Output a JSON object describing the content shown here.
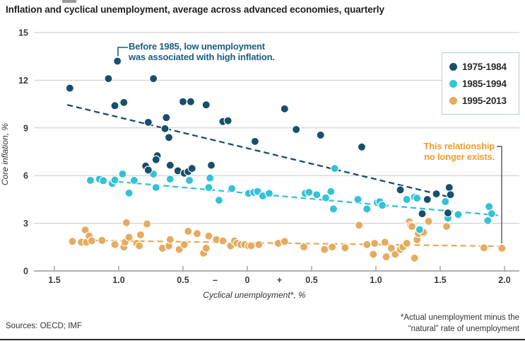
{
  "page": {
    "title": "Inflation and cyclical unemployment, average across advanced economies, quarterly",
    "sources": "Sources: OECD; IMF",
    "footnote_line1": "*Actual unemployment minus the",
    "footnote_line2": "“natural” rate of unemployment"
  },
  "colors": {
    "series_1975": "#174f6c",
    "series_1985": "#35c1d6",
    "series_1995": "#e5ab60",
    "annotation_blue": "#1d5d80",
    "annotation_orange": "#f39c2d",
    "grid": "#c9c9c9",
    "axis": "#979797",
    "tick_text": "#3b3b3b",
    "legend_border": "#b5cedd",
    "connector_gray": "#555555"
  },
  "legend": {
    "items": [
      {
        "label": "1975-1984",
        "color": "#174f6c"
      },
      {
        "label": "1985-1994",
        "color": "#35c1d6"
      },
      {
        "label": "1995-2013",
        "color": "#e5ab60"
      }
    ]
  },
  "annotations": {
    "before1985": {
      "line1": "Before 1985, low unemployment",
      "line2": "was associated with high inflation.",
      "color": "#1d5d80",
      "points_to": [
        -1.01,
        13.2
      ]
    },
    "no_longer": {
      "line1": "This relationship",
      "line2": "no longer exists.",
      "color": "#f39c2d",
      "points_to": [
        1.98,
        1.55
      ]
    }
  },
  "chart_data": {
    "type": "scatter",
    "title": "Inflation and cyclical unemployment, average across advanced economies, quarterly",
    "xlabel": "Cyclical unemployment*, %",
    "ylabel": "Core inflation, %",
    "grid": true,
    "legend_position": "top-right",
    "x_axis": {
      "label": "Cyclical unemployment*, %",
      "range": [
        -1.66,
        2.12
      ],
      "ticks": [
        {
          "v": -1.5,
          "label": "1.5",
          "tick": true
        },
        {
          "v": -1.0,
          "label": "1.0",
          "tick": true
        },
        {
          "v": -0.5,
          "label": "0.5",
          "tick": true
        },
        {
          "v": -0.25,
          "label": "–",
          "tick": false
        },
        {
          "v": 0.0,
          "label": "0",
          "tick": true
        },
        {
          "v": 0.25,
          "label": "+",
          "tick": false
        },
        {
          "v": 0.5,
          "label": "0.5",
          "tick": true
        },
        {
          "v": 1.0,
          "label": "1.0",
          "tick": true
        },
        {
          "v": 1.5,
          "label": "1.5",
          "tick": true
        },
        {
          "v": 2.0,
          "label": "2.0",
          "tick": true
        }
      ]
    },
    "y_axis": {
      "label": "Core inflation, %",
      "range": [
        0,
        15
      ],
      "ticks": [
        0,
        3,
        6,
        9,
        12,
        15
      ]
    },
    "series": [
      {
        "name": "1975-1984",
        "color": "#174f6c",
        "trend": {
          "from": [
            -1.4,
            10.45
          ],
          "to": [
            1.6,
            4.6
          ]
        },
        "points": [
          [
            -1.38,
            11.5
          ],
          [
            -1.08,
            12.1
          ],
          [
            -1.01,
            13.2
          ],
          [
            -0.73,
            12.1
          ],
          [
            -1.03,
            10.4
          ],
          [
            -0.96,
            10.6
          ],
          [
            -0.5,
            10.65
          ],
          [
            -0.44,
            10.65
          ],
          [
            -0.32,
            10.45
          ],
          [
            -0.77,
            9.35
          ],
          [
            -0.63,
            9.65
          ],
          [
            -0.64,
            8.95
          ],
          [
            -0.61,
            8.4
          ],
          [
            -0.19,
            9.4
          ],
          [
            -0.15,
            9.45
          ],
          [
            0.06,
            8.15
          ],
          [
            0.29,
            10.2
          ],
          [
            0.38,
            8.9
          ],
          [
            0.57,
            8.55
          ],
          [
            0.89,
            7.8
          ],
          [
            -0.7,
            7.25
          ],
          [
            -0.71,
            7.0
          ],
          [
            -0.79,
            6.6
          ],
          [
            -0.77,
            6.35
          ],
          [
            -0.6,
            6.65
          ],
          [
            -0.54,
            6.3
          ],
          [
            -0.49,
            6.15
          ],
          [
            -0.46,
            6.25
          ],
          [
            -0.43,
            6.45
          ],
          [
            -0.28,
            6.65
          ],
          [
            1.19,
            5.1
          ],
          [
            1.4,
            4.5
          ],
          [
            1.47,
            4.85
          ],
          [
            1.57,
            5.25
          ],
          [
            1.58,
            4.8
          ],
          [
            1.36,
            3.6
          ],
          [
            1.56,
            3.65
          ]
        ]
      },
      {
        "name": "1985-1994",
        "color": "#35c1d6",
        "trend": {
          "from": [
            -1.15,
            5.72
          ],
          "to": [
            1.95,
            3.5
          ]
        },
        "points": [
          [
            -1.22,
            5.7
          ],
          [
            -1.15,
            5.78
          ],
          [
            -1.12,
            5.68
          ],
          [
            -1.05,
            5.5
          ],
          [
            -1.03,
            5.72
          ],
          [
            -0.97,
            6.1
          ],
          [
            -0.92,
            4.9
          ],
          [
            -0.88,
            5.7
          ],
          [
            -0.73,
            6.1
          ],
          [
            -0.71,
            5.25
          ],
          [
            -0.6,
            5.78
          ],
          [
            -0.45,
            5.7
          ],
          [
            -0.3,
            5.25
          ],
          [
            -0.29,
            5.85
          ],
          [
            -0.22,
            4.45
          ],
          [
            -0.12,
            5.18
          ],
          [
            0.01,
            4.88
          ],
          [
            0.05,
            4.95
          ],
          [
            0.08,
            5.0
          ],
          [
            0.12,
            4.72
          ],
          [
            0.17,
            4.88
          ],
          [
            0.45,
            4.88
          ],
          [
            0.48,
            4.95
          ],
          [
            0.54,
            4.8
          ],
          [
            0.61,
            4.6
          ],
          [
            0.65,
            5.0
          ],
          [
            0.67,
            3.9
          ],
          [
            0.68,
            6.45
          ],
          [
            0.86,
            4.5
          ],
          [
            0.93,
            3.9
          ],
          [
            1.01,
            4.3
          ],
          [
            1.03,
            4.36
          ],
          [
            1.05,
            4.13
          ],
          [
            1.24,
            4.5
          ],
          [
            1.3,
            4.65
          ],
          [
            1.32,
            4.58
          ],
          [
            1.34,
            2.6
          ],
          [
            1.54,
            4.36
          ],
          [
            1.56,
            3.32
          ],
          [
            1.64,
            3.55
          ],
          [
            1.87,
            3.17
          ],
          [
            1.88,
            4.05
          ],
          [
            1.9,
            3.6
          ]
        ]
      },
      {
        "name": "1995-2013",
        "color": "#e5ab60",
        "trend": {
          "from": [
            -1.2,
            1.92
          ],
          "to": [
            1.98,
            1.55
          ]
        },
        "points": [
          [
            -1.36,
            1.86
          ],
          [
            -1.29,
            1.81
          ],
          [
            -1.26,
            2.58
          ],
          [
            -1.25,
            1.81
          ],
          [
            -1.23,
            2.2
          ],
          [
            -1.21,
            1.9
          ],
          [
            -1.13,
            1.92
          ],
          [
            -1.03,
            1.66
          ],
          [
            -0.96,
            1.51
          ],
          [
            -0.95,
            1.81
          ],
          [
            -0.94,
            3.04
          ],
          [
            -0.92,
            2.12
          ],
          [
            -0.86,
            1.74
          ],
          [
            -0.84,
            1.58
          ],
          [
            -0.83,
            2.27
          ],
          [
            -0.78,
            2.96
          ],
          [
            -0.66,
            1.43
          ],
          [
            -0.61,
            1.58
          ],
          [
            -0.6,
            1.97
          ],
          [
            -0.53,
            1.35
          ],
          [
            -0.49,
            1.66
          ],
          [
            -0.46,
            2.5
          ],
          [
            -0.39,
            2.35
          ],
          [
            -0.34,
            1.12
          ],
          [
            -0.32,
            1.43
          ],
          [
            -0.3,
            2.2
          ],
          [
            -0.24,
            1.97
          ],
          [
            -0.19,
            1.89
          ],
          [
            -0.13,
            1.58
          ],
          [
            -0.1,
            1.89
          ],
          [
            -0.08,
            1.74
          ],
          [
            -0.05,
            1.66
          ],
          [
            -0.02,
            1.66
          ],
          [
            0.01,
            1.58
          ],
          [
            0.03,
            1.58
          ],
          [
            0.09,
            1.66
          ],
          [
            0.24,
            1.74
          ],
          [
            0.29,
            1.86
          ],
          [
            0.44,
            1.51
          ],
          [
            0.6,
            1.35
          ],
          [
            0.66,
            1.51
          ],
          [
            0.76,
            1.46
          ],
          [
            0.87,
            2.88
          ],
          [
            0.93,
            1.66
          ],
          [
            0.98,
            1.05
          ],
          [
            0.99,
            1.74
          ],
          [
            1.07,
            1.81
          ],
          [
            1.08,
            0.89
          ],
          [
            1.12,
            1.43
          ],
          [
            1.15,
            1.05
          ],
          [
            1.19,
            1.35
          ],
          [
            1.21,
            1.51
          ],
          [
            1.24,
            1.74
          ],
          [
            1.26,
            3.1
          ],
          [
            1.27,
            2.87
          ],
          [
            1.28,
            2.8
          ],
          [
            1.3,
            0.81
          ],
          [
            1.32,
            1.97
          ],
          [
            1.33,
            2.35
          ],
          [
            1.37,
            2.43
          ],
          [
            1.41,
            3.12
          ],
          [
            1.55,
            2.8
          ],
          [
            1.84,
            1.46
          ],
          [
            1.98,
            1.43
          ]
        ]
      }
    ]
  }
}
